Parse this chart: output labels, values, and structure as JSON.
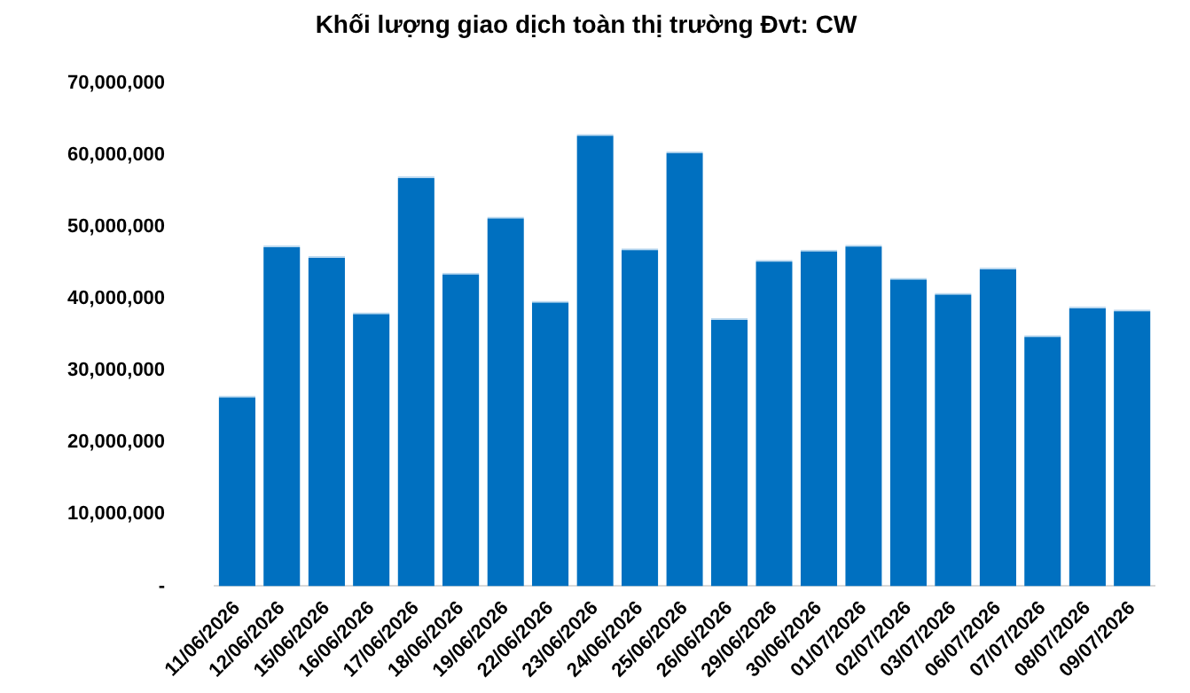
{
  "chart_data": {
    "type": "bar",
    "title": "Khối lượng giao dịch toàn thị trường Đvt: CW",
    "categories": [
      "11/06/2026",
      "12/06/2026",
      "15/06/2026",
      "16/06/2026",
      "17/06/2026",
      "18/06/2026",
      "19/06/2026",
      "22/06/2026",
      "23/06/2026",
      "24/06/2026",
      "25/06/2026",
      "26/06/2026",
      "29/06/2026",
      "30/06/2026",
      "01/07/2026",
      "02/07/2026",
      "03/07/2026",
      "06/07/2026",
      "07/07/2026",
      "08/07/2026",
      "09/07/2026"
    ],
    "values": [
      26500000,
      47400000,
      45900000,
      38100000,
      57000000,
      43600000,
      51400000,
      39700000,
      62900000,
      47000000,
      60500000,
      37300000,
      45400000,
      46800000,
      47500000,
      42900000,
      40800000,
      44300000,
      34900000,
      38900000,
      38500000
    ],
    "color": "#0070c0",
    "ylim": [
      0,
      70000000
    ],
    "yticks": [
      {
        "value": 0,
        "label": "-"
      },
      {
        "value": 10000000,
        "label": "10,000,000"
      },
      {
        "value": 20000000,
        "label": "20,000,000"
      },
      {
        "value": 30000000,
        "label": "30,000,000"
      },
      {
        "value": 40000000,
        "label": "40,000,000"
      },
      {
        "value": 50000000,
        "label": "50,000,000"
      },
      {
        "value": 60000000,
        "label": "60,000,000"
      },
      {
        "value": 70000000,
        "label": "70,000,000"
      }
    ],
    "grid": false,
    "legend": false
  }
}
